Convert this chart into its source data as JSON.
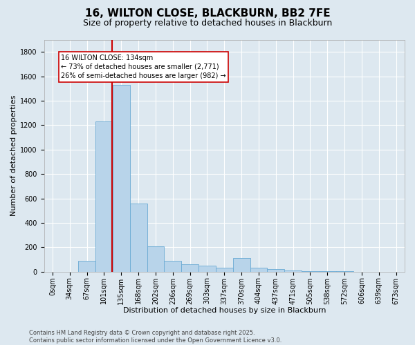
{
  "title1": "16, WILTON CLOSE, BLACKBURN, BB2 7FE",
  "title2": "Size of property relative to detached houses in Blackburn",
  "xlabel": "Distribution of detached houses by size in Blackburn",
  "ylabel": "Number of detached properties",
  "bin_labels": [
    "0sqm",
    "34sqm",
    "67sqm",
    "101sqm",
    "135sqm",
    "168sqm",
    "202sqm",
    "236sqm",
    "269sqm",
    "303sqm",
    "337sqm",
    "370sqm",
    "404sqm",
    "437sqm",
    "471sqm",
    "505sqm",
    "538sqm",
    "572sqm",
    "606sqm",
    "639sqm",
    "673sqm"
  ],
  "bar_heights": [
    0,
    0,
    90,
    1230,
    1530,
    560,
    210,
    90,
    60,
    50,
    30,
    110,
    30,
    20,
    10,
    5,
    3,
    2,
    1,
    1,
    0
  ],
  "bar_color": "#b8d4ea",
  "bar_edge_color": "#6aaad4",
  "highlight_bin": 4,
  "highlight_color": "#cc0000",
  "annotation_text": "16 WILTON CLOSE: 134sqm\n← 73% of detached houses are smaller (2,771)\n26% of semi-detached houses are larger (982) →",
  "annotation_box_color": "#ffffff",
  "annotation_box_edge": "#cc0000",
  "ylim": [
    0,
    1900
  ],
  "yticks": [
    0,
    200,
    400,
    600,
    800,
    1000,
    1200,
    1400,
    1600,
    1800
  ],
  "background_color": "#dde8f0",
  "grid_color": "#ffffff",
  "footnote": "Contains HM Land Registry data © Crown copyright and database right 2025.\nContains public sector information licensed under the Open Government Licence v3.0.",
  "title1_fontsize": 11,
  "title2_fontsize": 9,
  "xlabel_fontsize": 8,
  "ylabel_fontsize": 8,
  "tick_fontsize": 7,
  "annot_fontsize": 7,
  "footnote_fontsize": 6
}
